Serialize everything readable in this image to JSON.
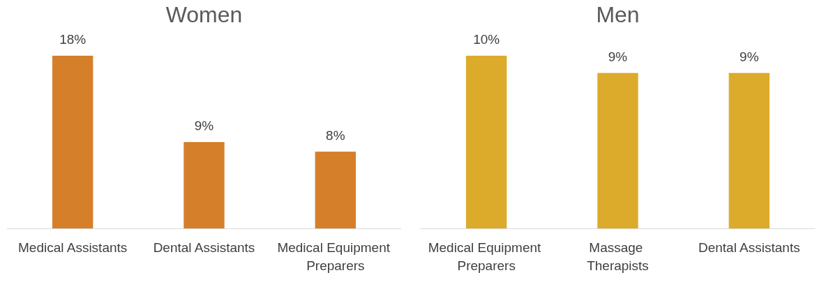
{
  "chart_data": [
    {
      "type": "bar",
      "title": "Women",
      "categories": [
        "Medical Assistants",
        "Dental Assistants",
        "Medical Equipment Preparers"
      ],
      "values": [
        18,
        9,
        8
      ],
      "value_labels": [
        "18%",
        "9%",
        "8%"
      ],
      "color": "#d67f2a"
    },
    {
      "type": "bar",
      "title": "Men",
      "categories": [
        "Medical Equipment Preparers",
        "Massage Therapists",
        "Dental Assistants"
      ],
      "values": [
        10,
        9,
        9
      ],
      "value_labels": [
        "10%",
        "9%",
        "9%"
      ],
      "color": "#ddab2b"
    }
  ]
}
